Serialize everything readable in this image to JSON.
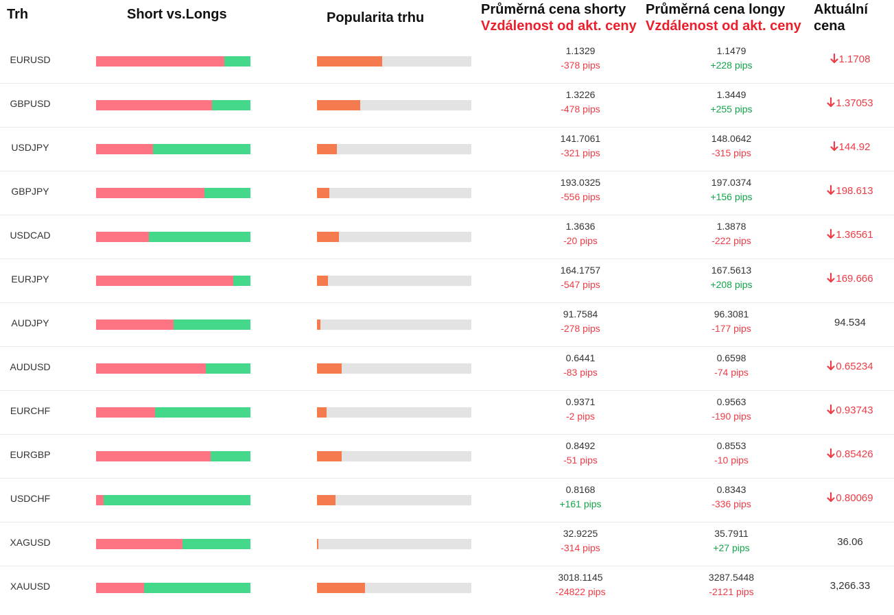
{
  "header": {
    "market": "Trh",
    "short_vs_longs": "Short vs.Longs",
    "popularity": "Popularita trhu",
    "avg_short": "Průměrná cena shorty",
    "avg_short_sub": "Vzdálenost od akt. ceny",
    "avg_long": "Průměrná cena longy",
    "avg_long_sub": "Vzdálenost od akt. ceny",
    "current_1": "Aktuální",
    "current_2": "cena"
  },
  "colors": {
    "short": "#ff7483",
    "long": "#44d98a",
    "popularity": "#f47b4d",
    "bar_bg": "#e3e3e3",
    "negative": "#ef3b45",
    "positive": "#12a54a"
  },
  "rows": [
    {
      "market": "EURUSD",
      "short_ratio": 0.83,
      "popularity": 0.42,
      "short_price": "1.1329",
      "short_pips": "-378 pips",
      "long_price": "1.1479",
      "long_pips": "+228 pips",
      "current": "1.1708",
      "down": true
    },
    {
      "market": "GBPUSD",
      "short_ratio": 0.75,
      "popularity": 0.28,
      "short_price": "1.3226",
      "short_pips": "-478 pips",
      "long_price": "1.3449",
      "long_pips": "+255 pips",
      "current": "1.37053",
      "down": true
    },
    {
      "market": "USDJPY",
      "short_ratio": 0.37,
      "popularity": 0.13,
      "short_price": "141.7061",
      "short_pips": "-321 pips",
      "long_price": "148.0642",
      "long_pips": "-315 pips",
      "current": "144.92",
      "down": true
    },
    {
      "market": "GBPJPY",
      "short_ratio": 0.7,
      "popularity": 0.08,
      "short_price": "193.0325",
      "short_pips": "-556 pips",
      "long_price": "197.0374",
      "long_pips": "+156 pips",
      "current": "198.613",
      "down": true
    },
    {
      "market": "USDCAD",
      "short_ratio": 0.34,
      "popularity": 0.14,
      "short_price": "1.3636",
      "short_pips": "-20 pips",
      "long_price": "1.3878",
      "long_pips": "-222 pips",
      "current": "1.36561",
      "down": true
    },
    {
      "market": "EURJPY",
      "short_ratio": 0.89,
      "popularity": 0.07,
      "short_price": "164.1757",
      "short_pips": "-547 pips",
      "long_price": "167.5613",
      "long_pips": "+208 pips",
      "current": "169.666",
      "down": true
    },
    {
      "market": "AUDJPY",
      "short_ratio": 0.5,
      "popularity": 0.02,
      "short_price": "91.7584",
      "short_pips": "-278 pips",
      "long_price": "96.3081",
      "long_pips": "-177 pips",
      "current": "94.534",
      "down": false
    },
    {
      "market": "AUDUSD",
      "short_ratio": 0.71,
      "popularity": 0.16,
      "short_price": "0.6441",
      "short_pips": "-83 pips",
      "long_price": "0.6598",
      "long_pips": "-74 pips",
      "current": "0.65234",
      "down": true
    },
    {
      "market": "EURCHF",
      "short_ratio": 0.38,
      "popularity": 0.06,
      "short_price": "0.9371",
      "short_pips": "-2 pips",
      "long_price": "0.9563",
      "long_pips": "-190 pips",
      "current": "0.93743",
      "down": true
    },
    {
      "market": "EURGBP",
      "short_ratio": 0.74,
      "popularity": 0.16,
      "short_price": "0.8492",
      "short_pips": "-51 pips",
      "long_price": "0.8553",
      "long_pips": "-10 pips",
      "current": "0.85426",
      "down": true
    },
    {
      "market": "USDCHF",
      "short_ratio": 0.05,
      "popularity": 0.12,
      "short_price": "0.8168",
      "short_pips": "+161 pips",
      "long_price": "0.8343",
      "long_pips": "-336 pips",
      "current": "0.80069",
      "down": true
    },
    {
      "market": "XAGUSD",
      "short_ratio": 0.56,
      "popularity": 0.01,
      "short_price": "32.9225",
      "short_pips": "-314 pips",
      "long_price": "35.7911",
      "long_pips": "+27 pips",
      "current": "36.06",
      "down": false
    },
    {
      "market": "XAUUSD",
      "short_ratio": 0.31,
      "popularity": 0.31,
      "short_price": "3018.1145",
      "short_pips": "-24822 pips",
      "long_price": "3287.5448",
      "long_pips": "-2121 pips",
      "current": "3,266.33",
      "down": false
    }
  ]
}
